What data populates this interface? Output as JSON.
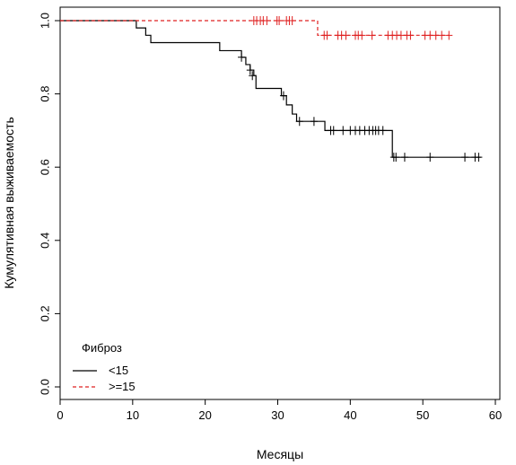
{
  "chart_data": {
    "type": "line",
    "subtype": "kaplan-meier step curve",
    "xlabel": "Месяцы",
    "ylabel": "Кумулятивная выживаемость",
    "xlim": [
      0,
      60
    ],
    "ylim": [
      0,
      1
    ],
    "x_ticks": [
      "0",
      "10",
      "20",
      "30",
      "40",
      "50",
      "60"
    ],
    "y_ticks": [
      "0.0",
      "0.2",
      "0.4",
      "0.6",
      "0.8",
      "1.0"
    ],
    "grid": false,
    "legend": {
      "title": "Фиброз",
      "placement": "bottom-left",
      "entries": [
        "<15",
        ">=15"
      ]
    },
    "series": [
      {
        "name": "<15",
        "color": "#000000",
        "line_style": "solid",
        "steps": [
          [
            0,
            1.0
          ],
          [
            10.5,
            0.98
          ],
          [
            11.8,
            0.96
          ],
          [
            12.5,
            0.94
          ],
          [
            22,
            0.918
          ],
          [
            25,
            0.9
          ],
          [
            25.6,
            0.88
          ],
          [
            26.2,
            0.865
          ],
          [
            26.7,
            0.85
          ],
          [
            27,
            0.815
          ],
          [
            30.5,
            0.795
          ],
          [
            31.2,
            0.77
          ],
          [
            32,
            0.745
          ],
          [
            32.6,
            0.725
          ],
          [
            36.5,
            0.7
          ],
          [
            45.8,
            0.627
          ]
        ],
        "end_x": 58,
        "censored": [
          [
            25,
            0.9
          ],
          [
            26.2,
            0.865
          ],
          [
            26.5,
            0.85
          ],
          [
            30.8,
            0.795
          ],
          [
            33,
            0.725
          ],
          [
            35,
            0.725
          ],
          [
            37.3,
            0.7
          ],
          [
            37.7,
            0.7
          ],
          [
            39,
            0.7
          ],
          [
            40,
            0.7
          ],
          [
            40.7,
            0.7
          ],
          [
            41.3,
            0.7
          ],
          [
            42,
            0.7
          ],
          [
            42.6,
            0.7
          ],
          [
            43.1,
            0.7
          ],
          [
            43.5,
            0.7
          ],
          [
            43.9,
            0.7
          ],
          [
            44.5,
            0.7
          ],
          [
            46,
            0.627
          ],
          [
            46.3,
            0.627
          ],
          [
            47.5,
            0.627
          ],
          [
            51,
            0.627
          ],
          [
            55.8,
            0.627
          ],
          [
            57.2,
            0.627
          ],
          [
            57.7,
            0.627
          ]
        ]
      },
      {
        "name": ">=15",
        "color": "#df2020",
        "line_style": "dashed",
        "steps": [
          [
            0,
            1.0
          ],
          [
            35.5,
            0.96
          ]
        ],
        "end_x": 53.6,
        "censored": [
          [
            26.7,
            1.0
          ],
          [
            27.1,
            1.0
          ],
          [
            27.6,
            1.0
          ],
          [
            28,
            1.0
          ],
          [
            28.5,
            1.0
          ],
          [
            29.9,
            1.0
          ],
          [
            30.2,
            1.0
          ],
          [
            31.2,
            1.0
          ],
          [
            31.6,
            1.0
          ],
          [
            32,
            1.0
          ],
          [
            36.4,
            0.96
          ],
          [
            36.8,
            0.96
          ],
          [
            38.3,
            0.96
          ],
          [
            38.8,
            0.96
          ],
          [
            39.4,
            0.96
          ],
          [
            40.7,
            0.96
          ],
          [
            41.1,
            0.96
          ],
          [
            41.6,
            0.96
          ],
          [
            43,
            0.96
          ],
          [
            45.2,
            0.96
          ],
          [
            45.8,
            0.96
          ],
          [
            46.4,
            0.96
          ],
          [
            47,
            0.96
          ],
          [
            47.8,
            0.96
          ],
          [
            48.3,
            0.96
          ],
          [
            50.3,
            0.96
          ],
          [
            51,
            0.96
          ],
          [
            51.8,
            0.96
          ],
          [
            52.6,
            0.96
          ],
          [
            53.6,
            0.96
          ]
        ]
      }
    ]
  }
}
